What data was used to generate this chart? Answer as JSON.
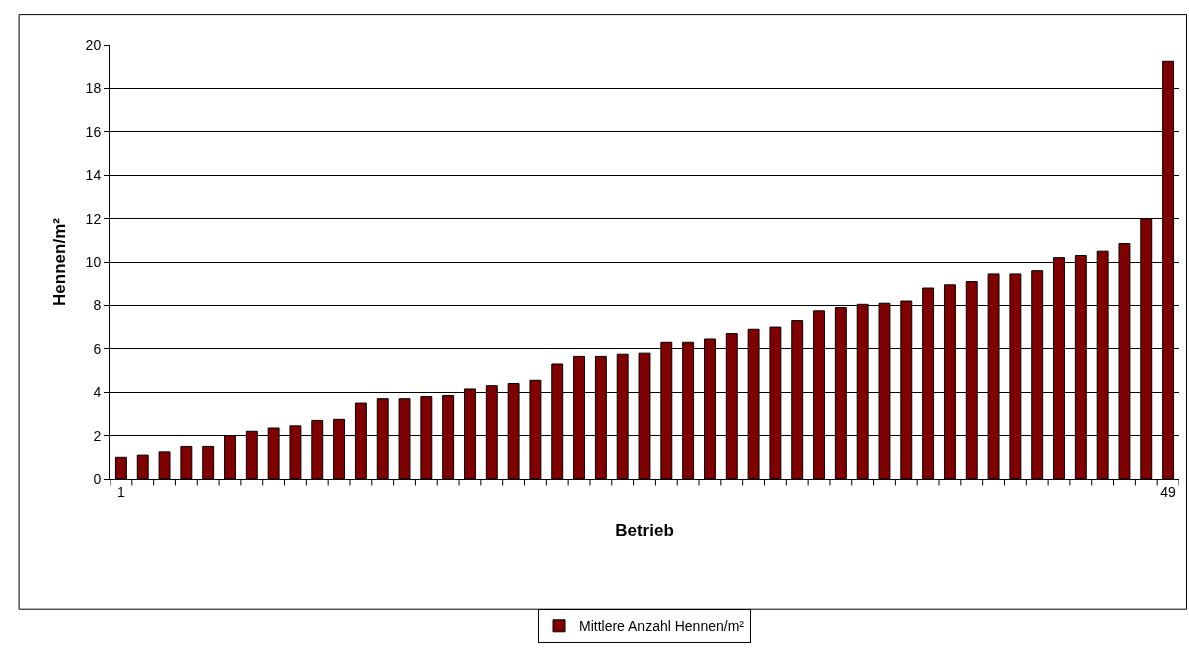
{
  "chart_data": {
    "type": "bar",
    "xlabel": "Betrieb",
    "ylabel": "Hennen/m²",
    "categories": [
      "1",
      null,
      null,
      null,
      null,
      null,
      null,
      null,
      null,
      null,
      null,
      null,
      null,
      null,
      null,
      null,
      null,
      null,
      null,
      null,
      null,
      null,
      null,
      null,
      null,
      null,
      null,
      null,
      null,
      null,
      null,
      null,
      null,
      null,
      null,
      null,
      null,
      null,
      null,
      null,
      null,
      null,
      null,
      null,
      null,
      null,
      null,
      null,
      "49"
    ],
    "series": [
      {
        "name": "Mittlere Anzahl Hennen/m²",
        "color": "#800000",
        "values": [
          1.0,
          1.1,
          1.25,
          1.5,
          1.5,
          2.0,
          2.2,
          2.35,
          2.45,
          2.7,
          2.75,
          3.5,
          3.7,
          3.7,
          3.8,
          3.85,
          4.15,
          4.3,
          4.4,
          4.55,
          5.3,
          5.65,
          5.65,
          5.75,
          5.8,
          6.3,
          6.3,
          6.45,
          6.7,
          6.9,
          7.0,
          7.3,
          7.75,
          7.9,
          8.05,
          8.1,
          8.2,
          8.8,
          8.95,
          9.1,
          9.45,
          9.45,
          9.6,
          10.2,
          10.3,
          10.5,
          10.85,
          12.0,
          19.25
        ]
      }
    ],
    "ylim": [
      0,
      20
    ],
    "yticks": [
      0,
      2,
      4,
      6,
      8,
      10,
      12,
      14,
      16,
      18,
      20
    ],
    "grid": "y",
    "legend": "bottom"
  }
}
